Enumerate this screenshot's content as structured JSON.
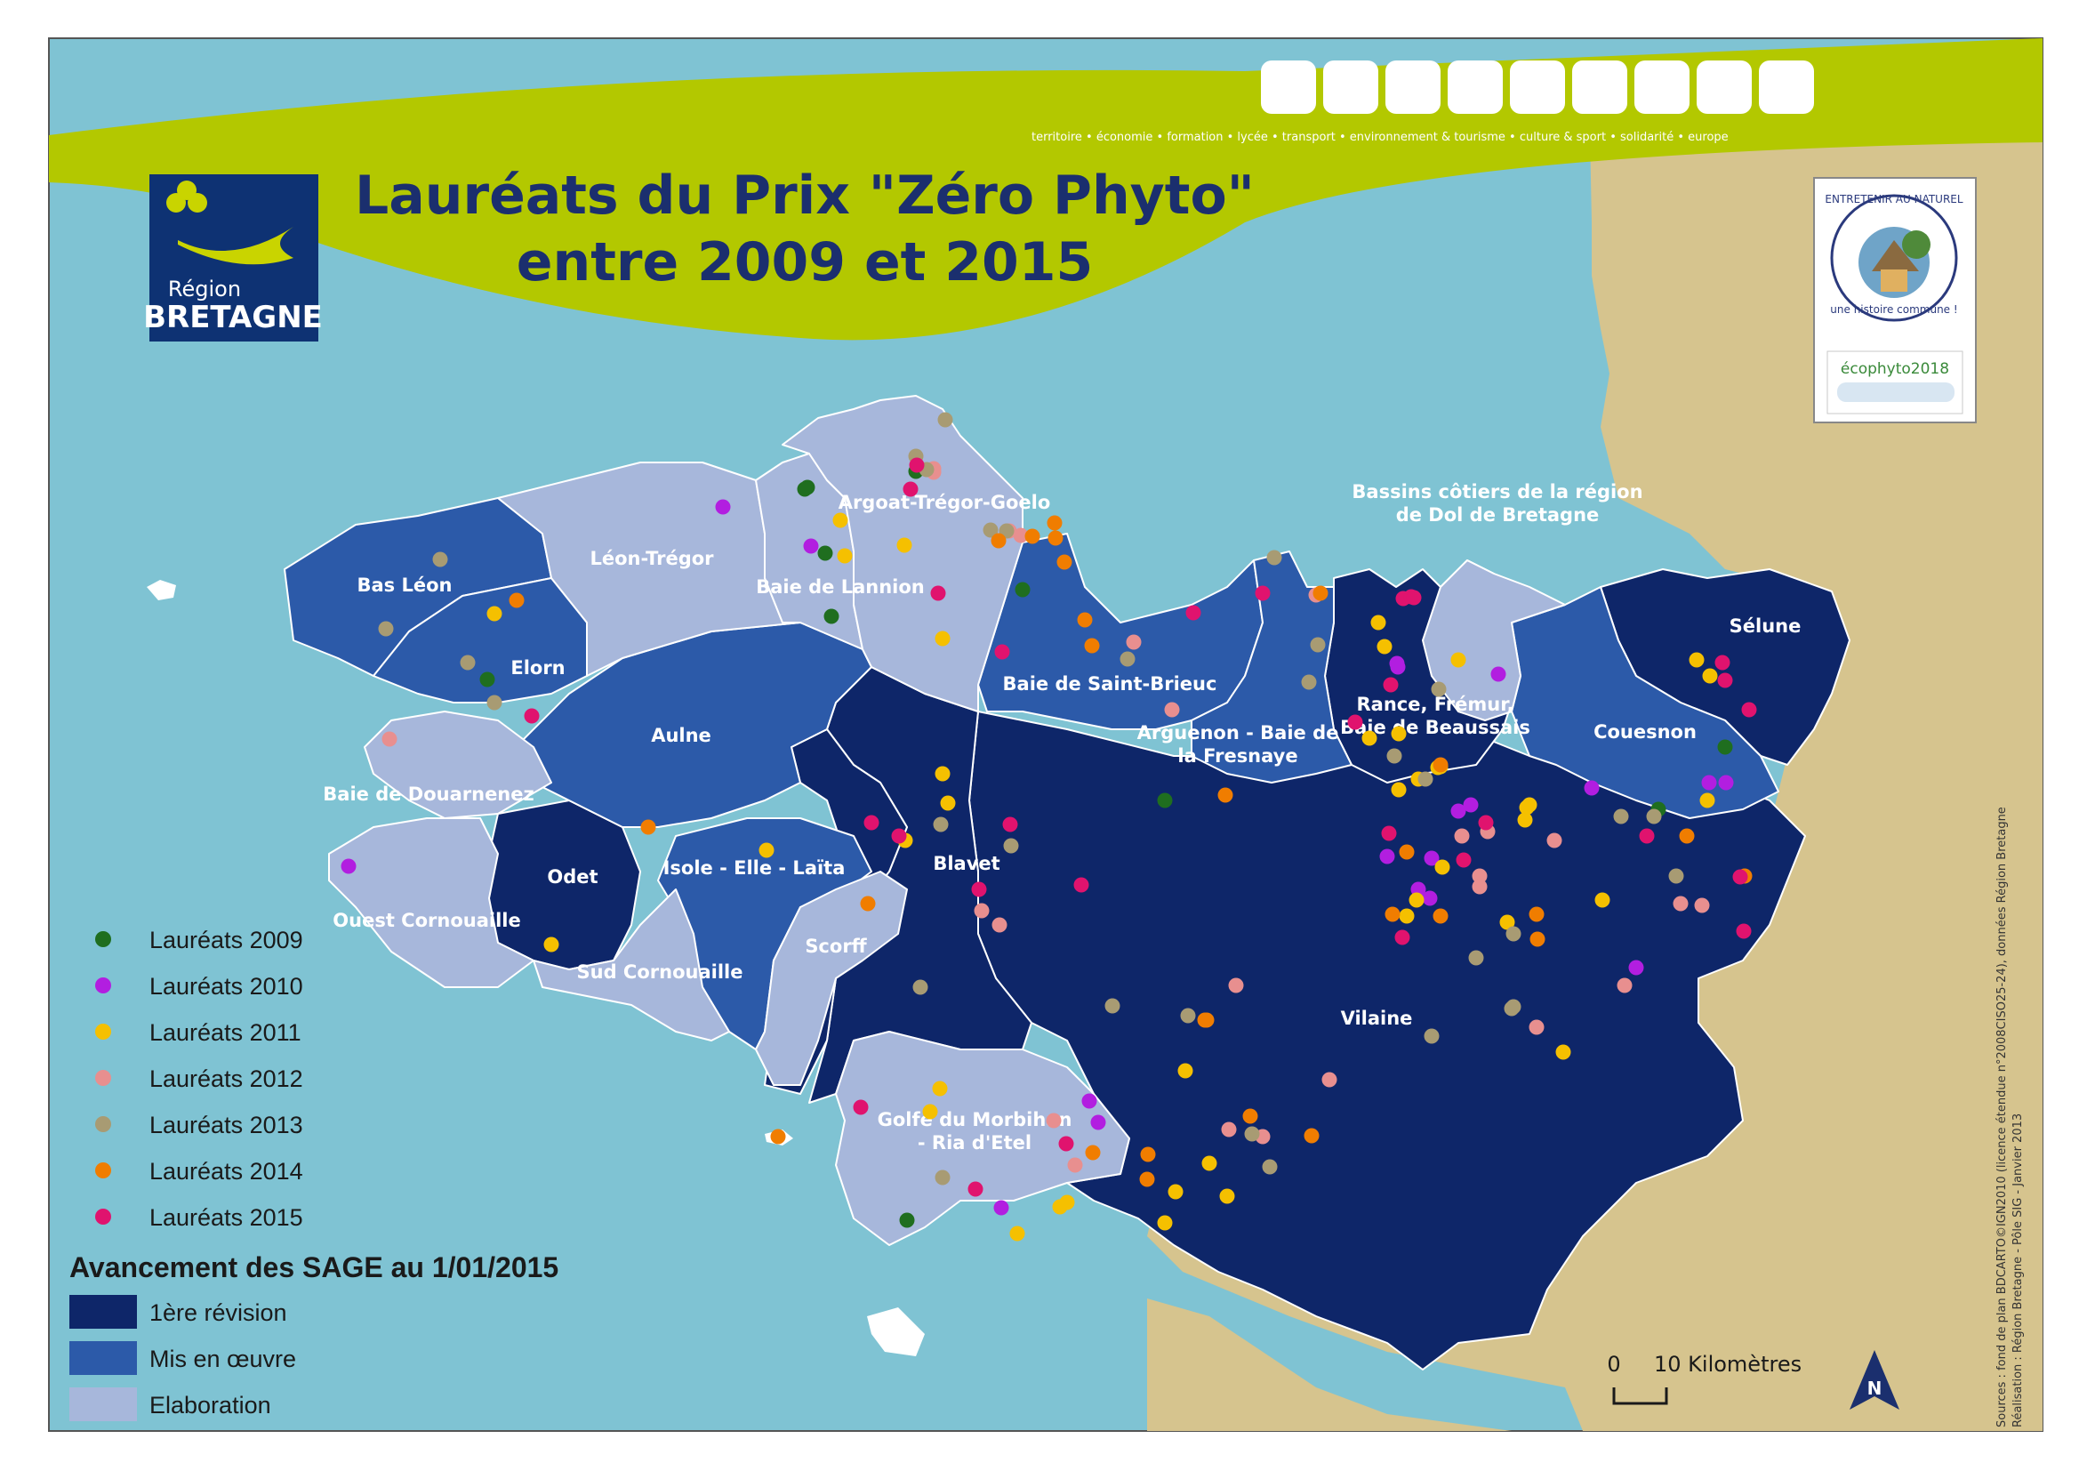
{
  "title": {
    "line1": "Lauréats du Prix \"Zéro Phyto\"",
    "line2": "entre 2009 et 2015"
  },
  "header": {
    "nav_text": "territoire • économie • formation • lycée • transport • environnement & tourisme • culture & sport • solidarité • europe",
    "nav_box_count": 9,
    "accent_color": "#b3c800"
  },
  "logo": {
    "region_small": "Région",
    "region_big": "BRETAGNE"
  },
  "badge": {
    "top_text": "ENTRETENIR AU NATUREL",
    "bottom_text": "une histoire commune !",
    "ecophyto": "écophyto2018"
  },
  "colors": {
    "sea": "#7fc3d3",
    "land_other": "#d6c48e",
    "revision": "#0e2669",
    "mis_en_oeuvre": "#2c5aa9",
    "elaboration": "#a7b7db",
    "y2009": "#1f6e1f",
    "y2010": "#b21ee0",
    "y2011": "#f5c000",
    "y2012": "#e88f8f",
    "y2013": "#a89b73",
    "y2014": "#f07d00",
    "y2015": "#e0136e"
  },
  "regions": [
    {
      "id": "bas-leon",
      "name": "Bas Léon"
    },
    {
      "id": "leon-tregor",
      "name": "Léon-Trégor"
    },
    {
      "id": "baie-lannion",
      "name": "Baie de Lannion"
    },
    {
      "id": "argoat",
      "name": "Argoat-Trégor-Goelo"
    },
    {
      "id": "elorn",
      "name": "Elorn"
    },
    {
      "id": "aulne",
      "name": "Aulne"
    },
    {
      "id": "douarnenez",
      "name": "Baie de Douarnenez"
    },
    {
      "id": "odet",
      "name": "Odet"
    },
    {
      "id": "ouest-cornouaille",
      "name": "Ouest Cornouaille"
    },
    {
      "id": "sud-cornouaille",
      "name": "Sud Cornouaille"
    },
    {
      "id": "isole",
      "name": "Isole - Elle - Laïta"
    },
    {
      "id": "scorff",
      "name": "Scorff"
    },
    {
      "id": "blavet",
      "name": "Blavet"
    },
    {
      "id": "golfe",
      "name": "Golfe du Morbihan - Ria d'Etel"
    },
    {
      "id": "st-brieuc",
      "name": "Baie de Saint-Brieuc"
    },
    {
      "id": "arguenon",
      "name": "Arguenon - Baie de la Fresnaye"
    },
    {
      "id": "rance",
      "name": "Rance, Frémur, Baie de Beaussais"
    },
    {
      "id": "dol",
      "name": "Bassins côtiers de la région de Dol de Bretagne"
    },
    {
      "id": "couesnon",
      "name": "Couesnon"
    },
    {
      "id": "selune",
      "name": "Sélune"
    },
    {
      "id": "vilaine",
      "name": "Vilaine"
    }
  ],
  "region_labels": {
    "bas_leon": "Bas Léon",
    "leon_tregor": "Léon-Trégor",
    "baie_lannion": "Baie de Lannion",
    "argoat": "Argoat-Trégor-Goelo",
    "elorn": "Elorn",
    "aulne": "Aulne",
    "douarnenez": "Baie de Douarnenez",
    "odet": "Odet",
    "ouest_cornouaille": "Ouest Cornouaille",
    "sud_cornouaille": "Sud Cornouaille",
    "isole": "Isole - Elle - Laïta",
    "scorff": "Scorff",
    "blavet": "Blavet",
    "golfe_1": "Golfe du Morbihan",
    "golfe_2": "- Ria d'Etel",
    "st_brieuc": "Baie de Saint-Brieuc",
    "arguenon_1": "Arguenon - Baie de",
    "arguenon_2": "la Fresnaye",
    "rance_1": "Rance, Frémur,",
    "rance_2": "Baie de Beaussais",
    "dol_1": "Bassins côtiers de la région",
    "dol_2": "de Dol de Bretagne",
    "couesnon": "Couesnon",
    "selune": "Sélune",
    "vilaine": "Vilaine"
  },
  "laureates_legend": [
    {
      "label": "Lauréats 2009",
      "color": "#1f6e1f"
    },
    {
      "label": "Lauréats 2010",
      "color": "#b21ee0"
    },
    {
      "label": "Lauréats 2011",
      "color": "#f5c000"
    },
    {
      "label": "Lauréats 2012",
      "color": "#e88f8f"
    },
    {
      "label": "Lauréats 2013",
      "color": "#a89b73"
    },
    {
      "label": "Lauréats 2014",
      "color": "#f07d00"
    },
    {
      "label": "Lauréats 2015",
      "color": "#e0136e"
    }
  ],
  "sage_legend": {
    "heading": "Avancement des SAGE au 1/01/2015",
    "items": [
      {
        "label": "1ère révision",
        "color": "#0e2669"
      },
      {
        "label": "Mis en œuvre",
        "color": "#2c5aa9"
      },
      {
        "label": "Elaboration",
        "color": "#a7b7db"
      }
    ]
  },
  "scale": {
    "zero": "0",
    "label": "10 Kilomètres"
  },
  "north_label": "N",
  "sources": {
    "line1": "Sources : fond de plan BDCARTO©IGN2010 (licence étendue n°2008CISO25-24), données Région Bretagne",
    "line2": "Réalisation : Région Bretagne - Pôle SIG - Janvier 2013"
  }
}
